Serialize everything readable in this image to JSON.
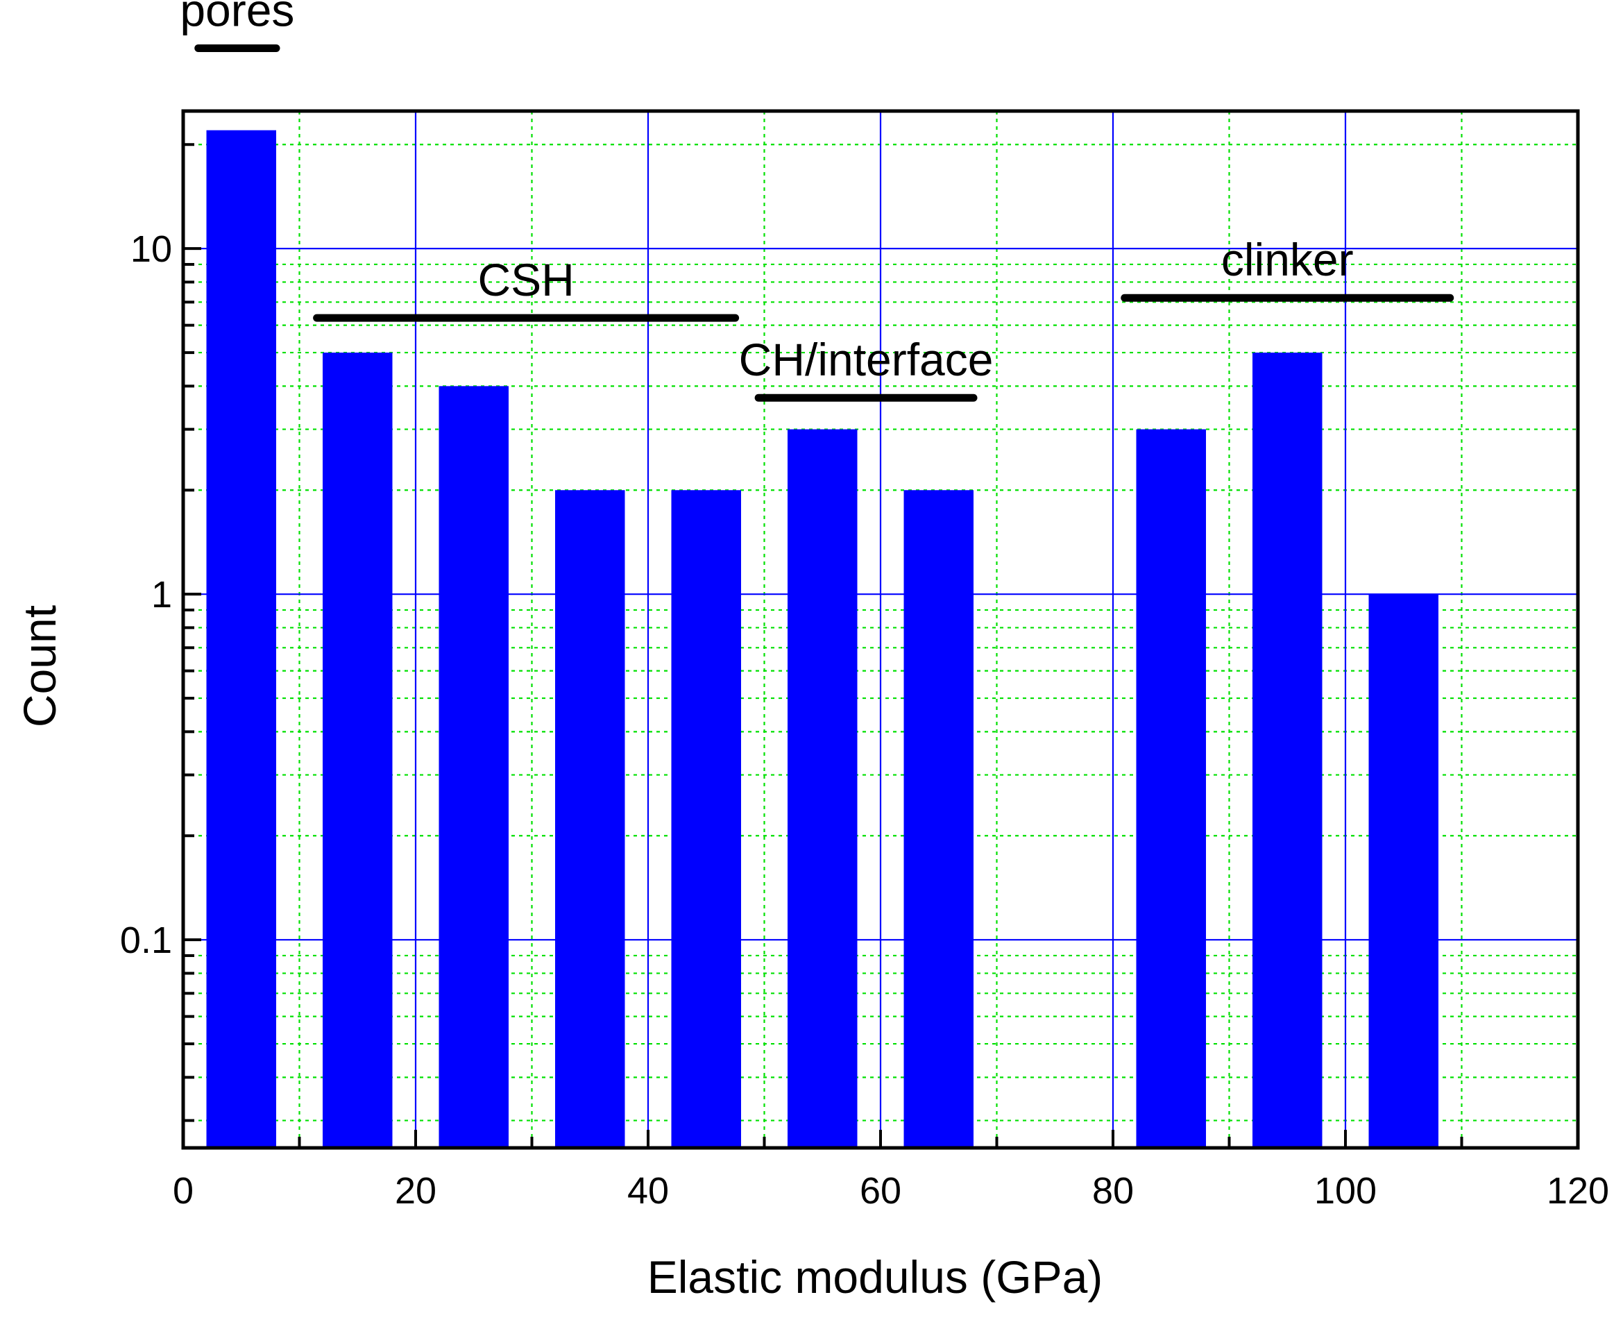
{
  "chart_data": {
    "type": "bar",
    "xlabel": "Elastic modulus (GPa)",
    "ylabel": "Count",
    "x_scale": "linear",
    "y_scale": "log",
    "xlim": [
      0,
      120
    ],
    "ylim": [
      0.025,
      25
    ],
    "x_ticks": [
      {
        "value": 0,
        "label": "0"
      },
      {
        "value": 20,
        "label": "20"
      },
      {
        "value": 40,
        "label": "40"
      },
      {
        "value": 60,
        "label": "60"
      },
      {
        "value": 80,
        "label": "80"
      },
      {
        "value": 100,
        "label": "100"
      },
      {
        "value": 120,
        "label": "120"
      }
    ],
    "y_ticks": [
      {
        "value": 0.1,
        "label": "0.1"
      },
      {
        "value": 1,
        "label": "1"
      },
      {
        "value": 10,
        "label": "10"
      }
    ],
    "bin_width": 10,
    "bar_width_fraction": 0.6,
    "bins": [
      {
        "center": 5,
        "count": 22
      },
      {
        "center": 15,
        "count": 5
      },
      {
        "center": 25,
        "count": 4
      },
      {
        "center": 35,
        "count": 2
      },
      {
        "center": 45,
        "count": 2
      },
      {
        "center": 55,
        "count": 3
      },
      {
        "center": 65,
        "count": 2
      },
      {
        "center": 75,
        "count": 0
      },
      {
        "center": 85,
        "count": 3
      },
      {
        "center": 95,
        "count": 5
      },
      {
        "center": 105,
        "count": 1
      }
    ],
    "annotations": [
      {
        "label": "pores",
        "x_start": 1.3,
        "x_end": 8,
        "y": 38
      },
      {
        "label": "CSH",
        "x_start": 11.5,
        "x_end": 47.5,
        "y": 6.3
      },
      {
        "label": "CH/interface",
        "x_start": 49.5,
        "x_end": 68,
        "y": 3.7
      },
      {
        "label": "clinker",
        "x_start": 81,
        "x_end": 109,
        "y": 7.2
      }
    ],
    "bar_color": "#0000ff",
    "major_grid_color": "#0000ff",
    "minor_grid_color": "#00e000",
    "grid": true
  }
}
